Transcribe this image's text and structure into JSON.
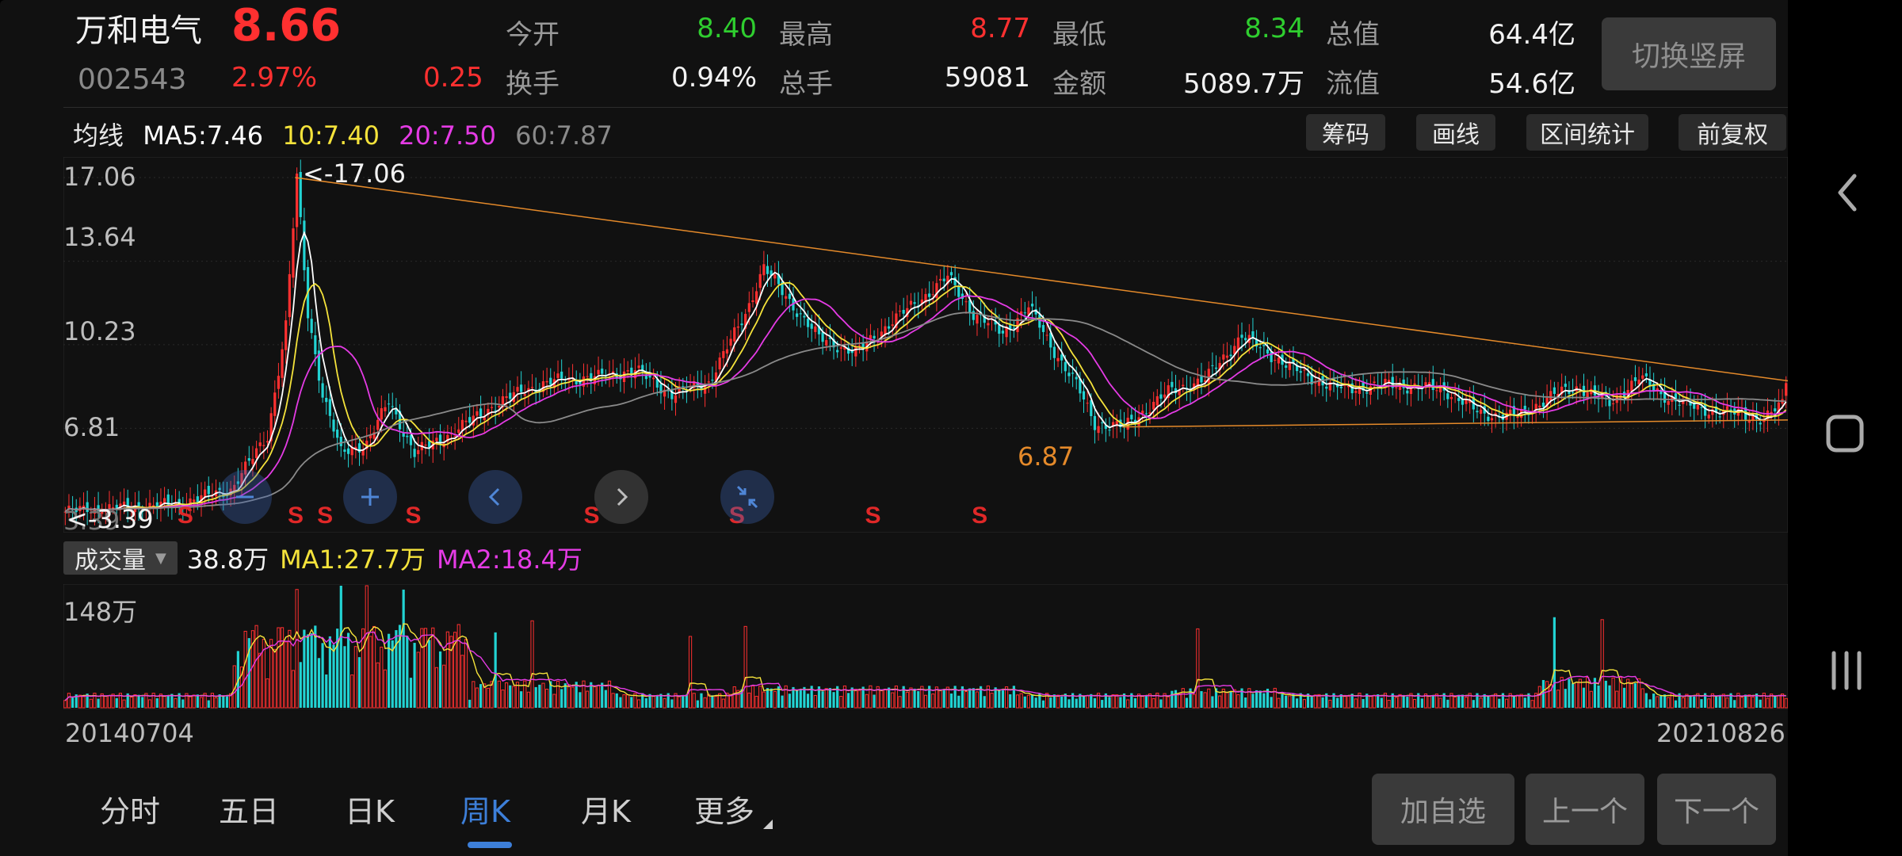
{
  "stock": {
    "name": "万和电气",
    "price": "8.66",
    "code": "002543",
    "change_pct": "2.97%",
    "change_amt": "0.25"
  },
  "quote": {
    "open_label": "今开",
    "open": "8.40",
    "high_label": "最高",
    "high": "8.77",
    "low_label": "最低",
    "low": "8.34",
    "mktcap_label": "总值",
    "mktcap": "64.4亿",
    "turnover_label": "换手",
    "turnover": "0.94%",
    "volume_label": "总手",
    "volume": "59081",
    "amount_label": "金额",
    "amount": "5089.7万",
    "float_label": "流值",
    "float_cap": "54.6亿"
  },
  "switch_button": "切换竖屏",
  "ma_bar": {
    "label": "均线",
    "ma5": "MA5:7.46",
    "ma10": "10:7.40",
    "ma20": "20:7.50",
    "ma60": "60:7.87"
  },
  "tools": [
    "筹码",
    "画线",
    "区间统计",
    "前复权"
  ],
  "price_axis": [
    "17.06",
    "13.64",
    "10.23",
    "6.81",
    "3.39"
  ],
  "annotations": {
    "high": "<-17.06",
    "low": "<-3.39",
    "mid_low": "6.87",
    "signal": "S"
  },
  "volume_panel": {
    "selector": "成交量",
    "current": "38.8万",
    "ma1": "MA1:27.7万",
    "ma2": "MA2:18.4万",
    "axis_max": "148万"
  },
  "dates": {
    "start": "20140704",
    "end": "20210826"
  },
  "tabs": [
    "分时",
    "五日",
    "日K",
    "周K",
    "月K",
    "更多"
  ],
  "active_tab": "周K",
  "bottom_buttons": [
    "加自选",
    "上一个",
    "下一个"
  ],
  "colors": {
    "up": "#ff3030",
    "down": "#22d3d3",
    "ma5": "#ffffff",
    "ma10": "#f5e33b",
    "ma20": "#e53be5",
    "ma60": "#8a8a8a",
    "trend": "#e58a2a",
    "accent": "#3d7fd9"
  },
  "chart_data": {
    "type": "candlestick",
    "period": "weekly",
    "x_range": [
      "20140704",
      "20210826"
    ],
    "y_range": [
      3.39,
      17.06
    ],
    "key_points": [
      {
        "date": "20140704",
        "close": 3.39
      },
      {
        "label": "peak",
        "close": 17.06
      },
      {
        "label": "low",
        "close": 6.87
      },
      {
        "date": "20210826",
        "close": 8.66
      }
    ],
    "ma": {
      "MA5": 7.46,
      "MA10": 7.4,
      "MA20": 7.5,
      "MA60": 7.87
    },
    "volume": {
      "current": "38.8万",
      "MA1": "27.7万",
      "MA2": "18.4万",
      "max": "148万"
    }
  }
}
